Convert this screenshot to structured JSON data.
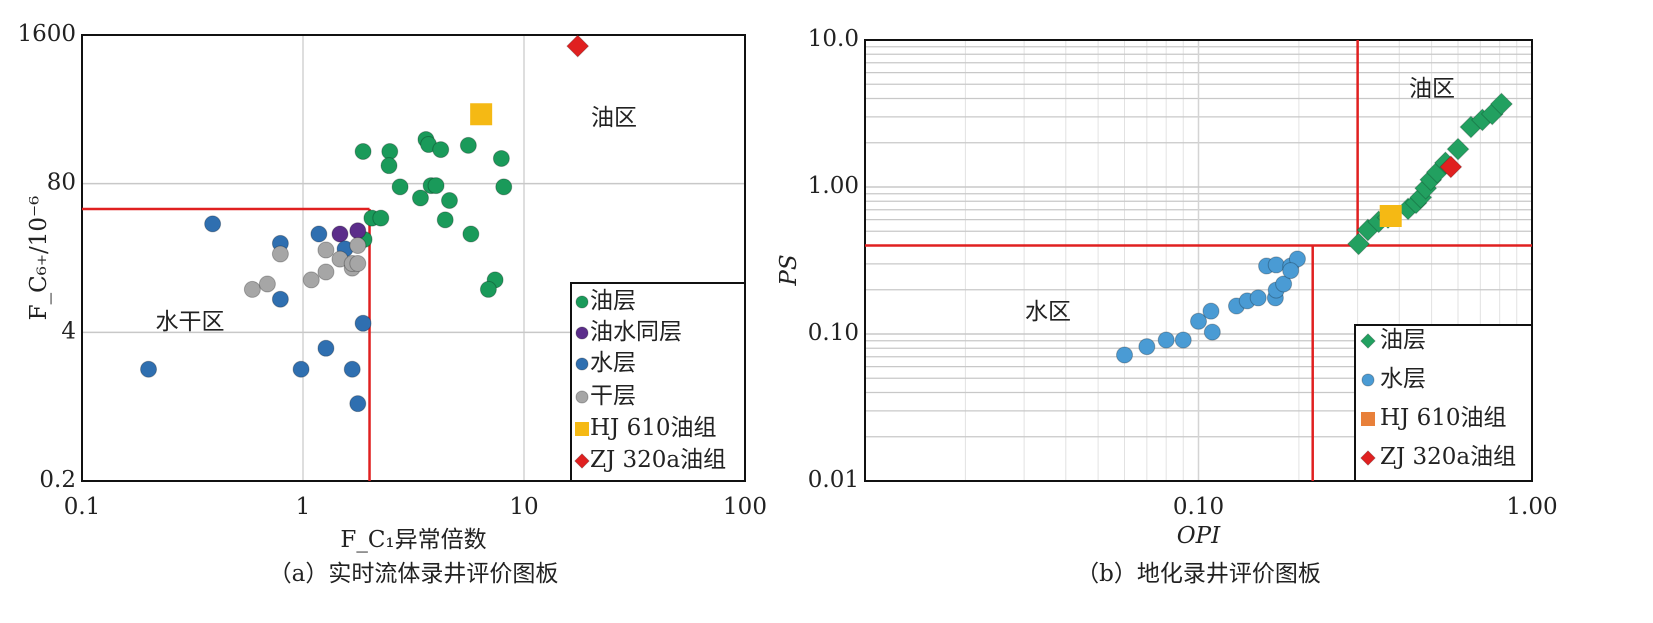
{
  "chart_data": [
    {
      "type": "scatter",
      "log_x": true,
      "log_y": true,
      "grid": true,
      "minor_grid": false,
      "xlabel": "F_C₁异常倍数",
      "ylabel": "F_C₆₊/10⁻⁶",
      "caption": "（a）实时流体录井评价图板",
      "xlim": [
        0.1,
        100
      ],
      "ylim": [
        0.2,
        1600
      ],
      "xticks": [
        0.1,
        1,
        10,
        100
      ],
      "yticks": [
        0.2,
        4,
        80,
        1600
      ],
      "annotations": [
        "油区",
        "水干区"
      ],
      "threshold_color": "#e02020",
      "threshold_lines": [
        {
          "x": [
            0.1,
            2
          ],
          "y": [
            48,
            48
          ]
        },
        {
          "x": [
            2,
            2
          ],
          "y": [
            0.2,
            48
          ]
        }
      ],
      "series": [
        {
          "name": "油层",
          "color": "#1a9a5a",
          "marker": "circle",
          "x": [
            1.87,
            2.47,
            2.45,
            3.6,
            3.7,
            4.2,
            5.6,
            7.9,
            2.75,
            3.8,
            4.0,
            3.4,
            4.6,
            8.1,
            2.05,
            2.25,
            4.4,
            5.75,
            7.4,
            6.9,
            1.89
          ],
          "values": [
            153,
            153,
            115,
            195,
            176,
            159,
            173,
            133,
            75,
            77,
            77,
            60,
            57,
            75,
            40,
            40,
            38.6,
            29,
            11.5,
            9.5,
            26
          ]
        },
        {
          "name": "油水同层",
          "color": "#5b2d8a",
          "marker": "circle",
          "x": [
            1.47,
            1.77
          ],
          "values": [
            29,
            31
          ]
        },
        {
          "name": "水层",
          "color": "#2f6fb0",
          "marker": "circle",
          "x": [
            0.39,
            0.79,
            1.18,
            1.55,
            0.79,
            1.87,
            1.27,
            0.98,
            1.67,
            1.77,
            0.2
          ],
          "values": [
            35.6,
            24,
            29,
            21.5,
            7.8,
            4.8,
            2.9,
            1.9,
            1.9,
            0.95,
            1.9
          ]
        },
        {
          "name": "干层",
          "color": "#a6a6a6",
          "marker": "circle",
          "x": [
            0.59,
            0.69,
            0.79,
            1.09,
            1.27,
            1.27,
            1.47,
            1.67,
            1.67,
            1.77,
            1.77
          ],
          "values": [
            9.5,
            10.6,
            19.4,
            11.5,
            13.5,
            21,
            17.5,
            14.6,
            16,
            16,
            23
          ]
        },
        {
          "name": "HJ 610油组",
          "color": "#f5b914",
          "marker": "square",
          "x": [
            6.4
          ],
          "values": [
            324
          ]
        },
        {
          "name": "ZJ 320a油组",
          "color": "#e02020",
          "marker": "diamond",
          "x": [
            17.5
          ],
          "values": [
            1280
          ]
        }
      ]
    },
    {
      "type": "scatter",
      "log_x": true,
      "log_y": true,
      "grid": true,
      "minor_grid": true,
      "xlabel": "OPI",
      "ylabel": "PS",
      "caption": "（b）地化录井评价图板",
      "xlim": [
        0.01,
        1
      ],
      "ylim": [
        0.01,
        10
      ],
      "xticks": [
        {
          "value": 0.1,
          "label": "0.10"
        },
        {
          "value": 1,
          "label": "1.00"
        }
      ],
      "yticks": [
        0.01,
        {
          "value": 0.1,
          "label": "0.10"
        },
        {
          "value": 1,
          "label": "1.00"
        },
        {
          "value": 10,
          "label": "10.0"
        }
      ],
      "annotations": [
        "油区",
        "水区"
      ],
      "threshold_color": "#e02020",
      "threshold_lines": [
        {
          "x": [
            0.3,
            0.3
          ],
          "y": [
            0.4,
            10
          ]
        },
        {
          "x": [
            0.01,
            1
          ],
          "y": [
            0.4,
            0.4
          ]
        },
        {
          "x": [
            0.22,
            0.22
          ],
          "y": [
            0.01,
            0.4
          ]
        }
      ],
      "series": [
        {
          "name": "油层",
          "color": "#22a060",
          "marker": "diamond",
          "x": [
            0.302,
            0.322,
            0.347,
            0.37,
            0.425,
            0.449,
            0.464,
            0.48,
            0.497,
            0.52,
            0.55,
            0.6,
            0.656,
            0.71,
            0.76,
            0.81
          ],
          "values": [
            0.41,
            0.51,
            0.58,
            0.62,
            0.71,
            0.78,
            0.85,
            0.98,
            1.12,
            1.26,
            1.46,
            1.81,
            2.56,
            2.86,
            3.14,
            3.67
          ]
        },
        {
          "name": "水层",
          "color": "#4a9bd4",
          "marker": "circle",
          "x": [
            0.06,
            0.07,
            0.08,
            0.09,
            0.1,
            0.11,
            0.109,
            0.13,
            0.14,
            0.151,
            0.17,
            0.171,
            0.18,
            0.16,
            0.171,
            0.189,
            0.198,
            0.189
          ],
          "values": [
            0.072,
            0.082,
            0.091,
            0.091,
            0.122,
            0.103,
            0.143,
            0.155,
            0.168,
            0.176,
            0.176,
            0.199,
            0.219,
            0.29,
            0.295,
            0.29,
            0.324,
            0.27
          ]
        },
        {
          "name": "HJ 610油组",
          "color": "#f5b914",
          "legend_color": "#e8803a",
          "marker": "square",
          "x": [
            0.377
          ],
          "values": [
            0.635
          ]
        },
        {
          "name": "ZJ 320a油组",
          "color": "#e02020",
          "marker": "diamond",
          "x": [
            0.571
          ],
          "values": [
            1.37
          ]
        }
      ]
    }
  ]
}
